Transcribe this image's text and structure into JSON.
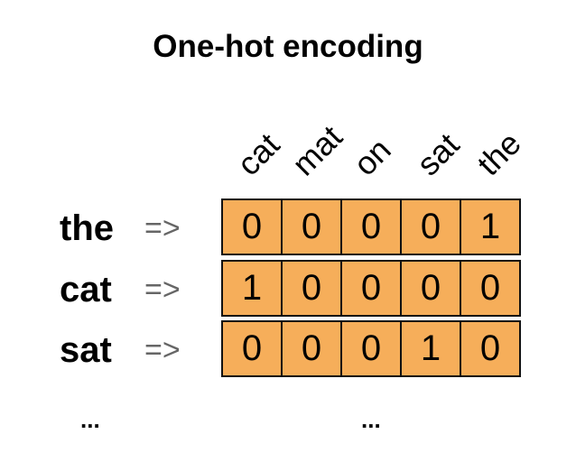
{
  "title": "One-hot encoding",
  "columns": [
    "cat",
    "mat",
    "on",
    "sat",
    "the"
  ],
  "rows": [
    {
      "word": "the",
      "arrow": "=>",
      "vector": [
        "0",
        "0",
        "0",
        "0",
        "1"
      ]
    },
    {
      "word": "cat",
      "arrow": "=>",
      "vector": [
        "1",
        "0",
        "0",
        "0",
        "0"
      ]
    },
    {
      "word": "sat",
      "arrow": "=>",
      "vector": [
        "0",
        "0",
        "0",
        "1",
        "0"
      ]
    }
  ],
  "ellipsis_left": "...",
  "ellipsis_right": "...",
  "colors": {
    "cell_fill": "#f6ae5a",
    "arrow": "#666666"
  }
}
